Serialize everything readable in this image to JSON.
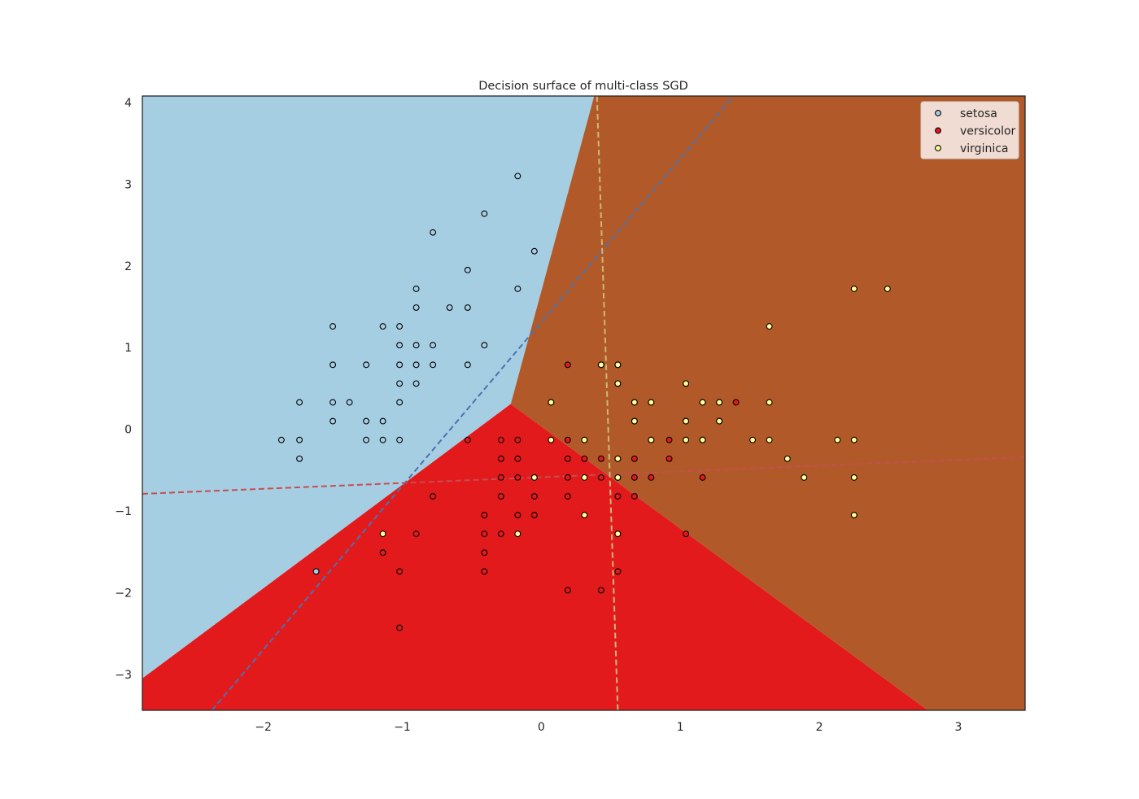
{
  "chart_data": {
    "type": "scatter",
    "title": "Decision surface of multi-class SGD",
    "xlabel": "",
    "ylabel": "",
    "xlim": [
      -2.87,
      3.48
    ],
    "ylim": [
      -3.44,
      4.08
    ],
    "x_ticks": [
      -2,
      -1,
      0,
      1,
      2,
      3
    ],
    "y_ticks": [
      -3,
      -2,
      -1,
      0,
      1,
      2,
      3,
      4
    ],
    "x_tick_labels": [
      "−2",
      "−1",
      "0",
      "1",
      "2",
      "3"
    ],
    "y_tick_labels": [
      "−3",
      "−2",
      "−1",
      "0",
      "1",
      "2",
      "3",
      "4"
    ],
    "grid": false,
    "legend_position": "top-right",
    "colors": {
      "setosa_region": "#a6cee3",
      "versicolor_region": "#e31a1c",
      "virginica_region": "#b15928",
      "setosa_point": "#a6cee3",
      "versicolor_point": "#e31a1c",
      "virginica_point": "#ffff99",
      "setosa_line": "#4c72b0",
      "versicolor_line": "#c44e52",
      "virginica_line": "#ccb974",
      "legend_bg": "#f1dcd3"
    },
    "regions": [
      {
        "class": "setosa",
        "polygon": [
          [
            -2.87,
            -3.05
          ],
          [
            -0.22,
            0.31
          ],
          [
            0.38,
            4.08
          ],
          [
            -2.87,
            4.08
          ]
        ]
      },
      {
        "class": "versicolor",
        "polygon": [
          [
            -2.87,
            -3.05
          ],
          [
            -0.22,
            0.31
          ],
          [
            2.78,
            -3.44
          ],
          [
            -2.87,
            -3.44
          ]
        ]
      },
      {
        "class": "virginica",
        "polygon": [
          [
            -0.22,
            0.31
          ],
          [
            0.38,
            4.08
          ],
          [
            3.48,
            4.08
          ],
          [
            3.48,
            -3.44
          ],
          [
            2.78,
            -3.44
          ]
        ]
      }
    ],
    "hyperplanes": [
      {
        "class": "setosa",
        "points": [
          [
            -2.37,
            -3.44
          ],
          [
            1.38,
            4.08
          ]
        ]
      },
      {
        "class": "versicolor",
        "points": [
          [
            -2.87,
            -0.79
          ],
          [
            3.48,
            -0.34
          ]
        ]
      },
      {
        "class": "virginica",
        "points": [
          [
            0.4,
            4.08
          ],
          [
            0.55,
            -3.44
          ]
        ]
      }
    ],
    "series": [
      {
        "name": "setosa",
        "points": [
          [
            -0.17,
            3.1
          ],
          [
            -0.41,
            2.64
          ],
          [
            -0.05,
            2.18
          ],
          [
            -0.78,
            2.41
          ],
          [
            -0.53,
            1.95
          ],
          [
            -0.9,
            1.72
          ],
          [
            -0.17,
            1.72
          ],
          [
            -0.9,
            1.49
          ],
          [
            -0.66,
            1.49
          ],
          [
            -0.53,
            1.49
          ],
          [
            -1.5,
            1.26
          ],
          [
            -1.14,
            1.26
          ],
          [
            -1.02,
            1.26
          ],
          [
            -1.02,
            1.03
          ],
          [
            -0.9,
            1.03
          ],
          [
            -0.78,
            1.03
          ],
          [
            -0.41,
            1.03
          ],
          [
            -1.5,
            0.79
          ],
          [
            -1.26,
            0.79
          ],
          [
            -1.02,
            0.79
          ],
          [
            -0.9,
            0.79
          ],
          [
            -0.78,
            0.79
          ],
          [
            -0.53,
            0.79
          ],
          [
            -1.02,
            0.56
          ],
          [
            -0.9,
            0.56
          ],
          [
            -1.74,
            0.33
          ],
          [
            -1.5,
            0.33
          ],
          [
            -1.38,
            0.33
          ],
          [
            -1.02,
            0.33
          ],
          [
            -1.5,
            0.1
          ],
          [
            -1.26,
            0.1
          ],
          [
            -1.14,
            0.1
          ],
          [
            -1.87,
            -0.13
          ],
          [
            -1.74,
            -0.13
          ],
          [
            -1.26,
            -0.13
          ],
          [
            -1.14,
            -0.13
          ],
          [
            -1.02,
            -0.13
          ],
          [
            -1.74,
            -0.36
          ],
          [
            -1.62,
            -1.74
          ]
        ]
      },
      {
        "name": "versicolor",
        "points": [
          [
            0.19,
            0.79
          ],
          [
            0.43,
            0.79
          ],
          [
            0.55,
            0.79
          ],
          [
            0.55,
            0.56
          ],
          [
            1.04,
            0.56
          ],
          [
            0.07,
            0.33
          ],
          [
            0.67,
            0.33
          ],
          [
            0.79,
            0.33
          ],
          [
            1.16,
            0.33
          ],
          [
            1.28,
            0.33
          ],
          [
            1.4,
            0.33
          ],
          [
            0.67,
            0.1
          ],
          [
            1.04,
            0.1
          ],
          [
            1.28,
            0.1
          ],
          [
            -0.53,
            -0.13
          ],
          [
            -0.29,
            -0.13
          ],
          [
            -0.17,
            -0.13
          ],
          [
            0.07,
            -0.13
          ],
          [
            0.19,
            -0.13
          ],
          [
            0.31,
            -0.13
          ],
          [
            0.79,
            -0.13
          ],
          [
            0.92,
            -0.13
          ],
          [
            1.04,
            -0.13
          ],
          [
            1.16,
            -0.13
          ],
          [
            -0.29,
            -0.36
          ],
          [
            -0.17,
            -0.36
          ],
          [
            0.19,
            -0.36
          ],
          [
            0.31,
            -0.36
          ],
          [
            0.43,
            -0.36
          ],
          [
            0.55,
            -0.36
          ],
          [
            0.67,
            -0.36
          ],
          [
            0.92,
            -0.36
          ],
          [
            -0.29,
            -0.59
          ],
          [
            -0.17,
            -0.59
          ],
          [
            -0.05,
            -0.59
          ],
          [
            0.19,
            -0.59
          ],
          [
            0.43,
            -0.59
          ],
          [
            0.55,
            -0.59
          ],
          [
            0.67,
            -0.59
          ],
          [
            0.79,
            -0.59
          ],
          [
            1.16,
            -0.59
          ],
          [
            -0.78,
            -0.82
          ],
          [
            -0.29,
            -0.82
          ],
          [
            -0.05,
            -0.82
          ],
          [
            0.19,
            -0.82
          ],
          [
            0.55,
            -0.82
          ],
          [
            0.67,
            -0.82
          ],
          [
            -0.41,
            -1.05
          ],
          [
            -0.17,
            -1.05
          ],
          [
            -0.05,
            -1.05
          ],
          [
            -0.9,
            -1.28
          ],
          [
            -0.41,
            -1.28
          ],
          [
            -0.29,
            -1.28
          ],
          [
            -0.17,
            -1.28
          ],
          [
            0.55,
            -1.28
          ],
          [
            1.04,
            -1.28
          ],
          [
            -1.14,
            -1.51
          ],
          [
            -0.41,
            -1.51
          ],
          [
            -1.02,
            -1.74
          ],
          [
            -0.41,
            -1.74
          ],
          [
            0.55,
            -1.74
          ],
          [
            0.19,
            -1.97
          ],
          [
            0.43,
            -1.97
          ],
          [
            -1.02,
            -2.43
          ]
        ]
      },
      {
        "name": "virginica",
        "points": [
          [
            2.25,
            1.72
          ],
          [
            2.49,
            1.72
          ],
          [
            1.64,
            1.26
          ],
          [
            0.43,
            0.79
          ],
          [
            0.55,
            0.79
          ],
          [
            0.55,
            0.56
          ],
          [
            1.04,
            0.56
          ],
          [
            0.07,
            0.33
          ],
          [
            0.67,
            0.33
          ],
          [
            0.79,
            0.33
          ],
          [
            1.16,
            0.33
          ],
          [
            1.28,
            0.33
          ],
          [
            1.64,
            0.33
          ],
          [
            0.67,
            0.1
          ],
          [
            1.04,
            0.1
          ],
          [
            1.28,
            0.1
          ],
          [
            0.07,
            -0.13
          ],
          [
            0.31,
            -0.13
          ],
          [
            0.79,
            -0.13
          ],
          [
            1.04,
            -0.13
          ],
          [
            1.16,
            -0.13
          ],
          [
            1.52,
            -0.13
          ],
          [
            1.64,
            -0.13
          ],
          [
            2.13,
            -0.13
          ],
          [
            2.25,
            -0.13
          ],
          [
            0.55,
            -0.36
          ],
          [
            1.77,
            -0.36
          ],
          [
            -0.05,
            -0.59
          ],
          [
            0.31,
            -0.59
          ],
          [
            0.55,
            -0.59
          ],
          [
            1.89,
            -0.59
          ],
          [
            2.25,
            -0.59
          ],
          [
            0.31,
            -1.05
          ],
          [
            2.25,
            -1.05
          ],
          [
            -1.14,
            -1.28
          ],
          [
            -0.17,
            -1.28
          ],
          [
            0.55,
            -1.28
          ]
        ]
      }
    ]
  }
}
